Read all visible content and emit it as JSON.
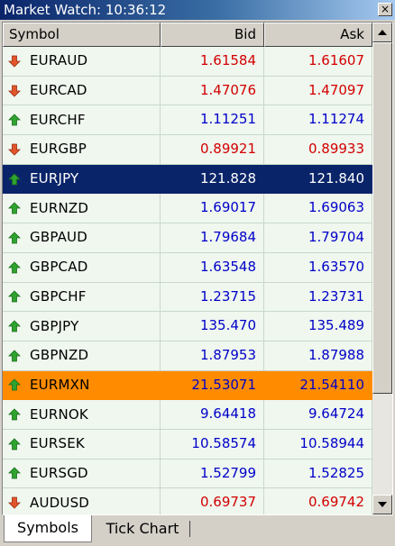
{
  "window": {
    "title": "Market Watch: 10:36:12",
    "close_glyph": "×"
  },
  "columns": {
    "symbol": "Symbol",
    "bid": "Bid",
    "ask": "Ask"
  },
  "colors": {
    "up": "#0000c8",
    "down": "#d20000",
    "selected_bg": "#0a246a",
    "highlight_bg": "#ff8c00",
    "row_bg": "#eff7ef"
  },
  "rows": [
    {
      "symbol": "EURAUD",
      "bid": "1.61584",
      "ask": "1.61607",
      "direction": "down",
      "icon": "red-down-arrow-icon"
    },
    {
      "symbol": "EURCAD",
      "bid": "1.47076",
      "ask": "1.47097",
      "direction": "down",
      "icon": "red-down-arrow-icon"
    },
    {
      "symbol": "EURCHF",
      "bid": "1.11251",
      "ask": "1.11274",
      "direction": "up",
      "icon": "green-up-arrow-icon"
    },
    {
      "symbol": "EURGBP",
      "bid": "0.89921",
      "ask": "0.89933",
      "direction": "down",
      "icon": "red-down-arrow-icon"
    },
    {
      "symbol": "EURJPY",
      "bid": "121.828",
      "ask": "121.840",
      "direction": "up",
      "icon": "green-up-arrow-icon",
      "state": "selected"
    },
    {
      "symbol": "EURNZD",
      "bid": "1.69017",
      "ask": "1.69063",
      "direction": "up",
      "icon": "green-up-arrow-icon"
    },
    {
      "symbol": "GBPAUD",
      "bid": "1.79684",
      "ask": "1.79704",
      "direction": "up",
      "icon": "green-up-arrow-icon"
    },
    {
      "symbol": "GBPCAD",
      "bid": "1.63548",
      "ask": "1.63570",
      "direction": "up",
      "icon": "green-up-arrow-icon"
    },
    {
      "symbol": "GBPCHF",
      "bid": "1.23715",
      "ask": "1.23731",
      "direction": "up",
      "icon": "green-up-arrow-icon"
    },
    {
      "symbol": "GBPJPY",
      "bid": "135.470",
      "ask": "135.489",
      "direction": "up",
      "icon": "green-up-arrow-icon"
    },
    {
      "symbol": "GBPNZD",
      "bid": "1.87953",
      "ask": "1.87988",
      "direction": "up",
      "icon": "green-up-arrow-icon"
    },
    {
      "symbol": "EURMXN",
      "bid": "21.53071",
      "ask": "21.54110",
      "direction": "up",
      "icon": "green-up-arrow-icon",
      "state": "highlight"
    },
    {
      "symbol": "EURNOK",
      "bid": "9.64418",
      "ask": "9.64724",
      "direction": "up",
      "icon": "green-up-arrow-icon"
    },
    {
      "symbol": "EURSEK",
      "bid": "10.58574",
      "ask": "10.58944",
      "direction": "up",
      "icon": "green-up-arrow-icon"
    },
    {
      "symbol": "EURSGD",
      "bid": "1.52799",
      "ask": "1.52825",
      "direction": "up",
      "icon": "green-up-arrow-icon"
    },
    {
      "symbol": "AUDUSD",
      "bid": "0.69737",
      "ask": "0.69742",
      "direction": "down",
      "icon": "red-down-arrow-icon"
    }
  ],
  "tabs": [
    {
      "label": "Symbols",
      "active": true
    },
    {
      "label": "Tick Chart",
      "active": false
    }
  ]
}
